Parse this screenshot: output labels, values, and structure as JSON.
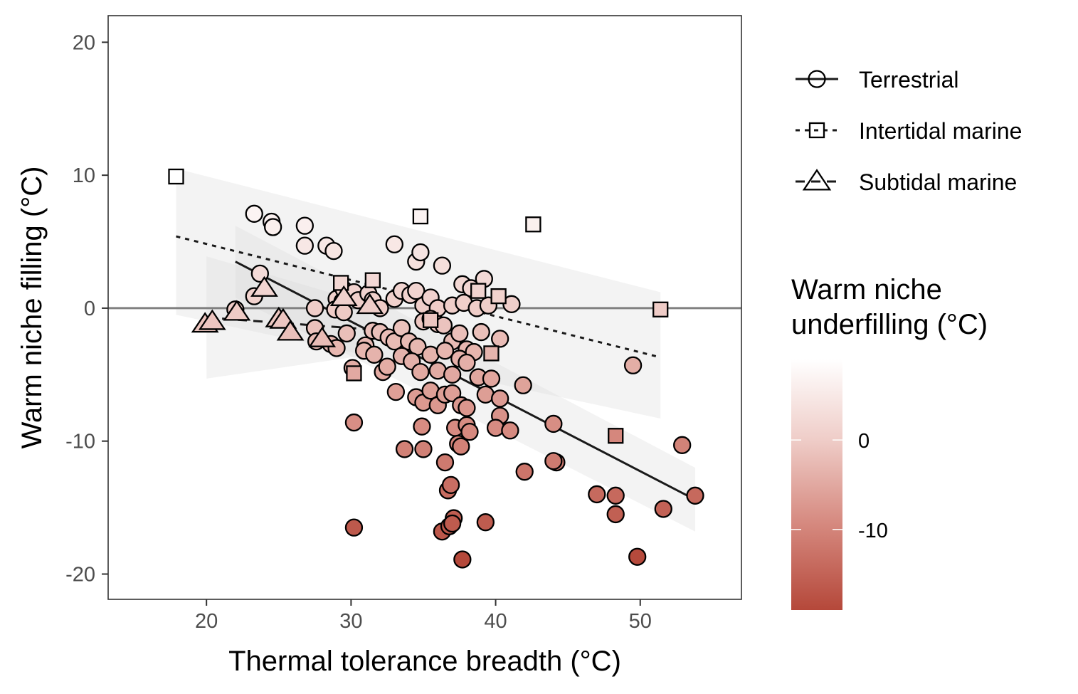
{
  "chart_data": {
    "type": "scatter",
    "xlabel": "Thermal tolerance breadth (°C)",
    "ylabel": "Warm niche filling (°C)",
    "xlim": [
      13.2,
      57
    ],
    "ylim": [
      -21.9,
      22
    ],
    "xticks": [
      20,
      30,
      40,
      50
    ],
    "yticks": [
      -20,
      -10,
      0,
      10,
      20
    ],
    "x_tick_labels": [
      "20",
      "30",
      "40",
      "50"
    ],
    "y_tick_labels": [
      "-20",
      "-10",
      "0",
      "10",
      "20"
    ],
    "grid": false,
    "reference_line_y": 0,
    "legend": {
      "placement": "right",
      "shape_entries": [
        {
          "label": "Terrestrial",
          "shape": "circle",
          "linetype": "solid"
        },
        {
          "label": "Intertidal marine",
          "shape": "square",
          "linetype": "dotted"
        },
        {
          "label": "Subtidal marine",
          "shape": "triangle",
          "linetype": "dashed"
        }
      ],
      "colorbar": {
        "title_line1": "Warm niche",
        "title_line2": "underfilling (°C)",
        "range": [
          -19,
          9
        ],
        "ticks": [
          0,
          -10
        ],
        "tick_labels": [
          "0",
          "-10"
        ],
        "low_color": "#b5483a",
        "high_color": "#ffffff"
      }
    },
    "series": [
      {
        "name": "Terrestrial",
        "shape": "circle",
        "points": [
          [
            23.3,
            7.1
          ],
          [
            24.5,
            6.5
          ],
          [
            24.6,
            6.1
          ],
          [
            26.8,
            6.2
          ],
          [
            26.8,
            4.7
          ],
          [
            28.3,
            4.7
          ],
          [
            28.8,
            4.3
          ],
          [
            33.0,
            4.8
          ],
          [
            34.5,
            3.5
          ],
          [
            34.8,
            4.2
          ],
          [
            36.3,
            3.2
          ],
          [
            37.7,
            1.8
          ],
          [
            38.3,
            1.5
          ],
          [
            39.2,
            2.2
          ],
          [
            22.0,
            -0.1
          ],
          [
            23.3,
            0.9
          ],
          [
            23.7,
            2.6
          ],
          [
            27.5,
            0.0
          ],
          [
            29.0,
            0.7
          ],
          [
            29.4,
            0.5
          ],
          [
            29.5,
            1.4
          ],
          [
            30.2,
            1.2
          ],
          [
            30.5,
            0.6
          ],
          [
            31.2,
            1.1
          ],
          [
            31.5,
            0.6
          ],
          [
            32.0,
            0.0
          ],
          [
            33.0,
            0.7
          ],
          [
            33.5,
            1.3
          ],
          [
            34.1,
            1.0
          ],
          [
            34.5,
            1.3
          ],
          [
            35.0,
            0.2
          ],
          [
            35.5,
            0.8
          ],
          [
            36.0,
            0.0
          ],
          [
            37.0,
            0.2
          ],
          [
            37.8,
            0.4
          ],
          [
            38.7,
            0.0
          ],
          [
            39.5,
            0.2
          ],
          [
            41.1,
            0.3
          ],
          [
            28.9,
            -0.1
          ],
          [
            29.5,
            -0.3
          ],
          [
            27.5,
            -1.5
          ],
          [
            27.6,
            -2.5
          ],
          [
            28.6,
            -2.7
          ],
          [
            29.0,
            -3.0
          ],
          [
            29.7,
            -1.9
          ],
          [
            30.1,
            -4.5
          ],
          [
            31.0,
            -2.8
          ],
          [
            31.5,
            -1.7
          ],
          [
            32.0,
            -1.8
          ],
          [
            32.6,
            -2.2
          ],
          [
            33.0,
            -2.5
          ],
          [
            33.5,
            -1.5
          ],
          [
            34.0,
            -2.5
          ],
          [
            34.6,
            -2.9
          ],
          [
            35.0,
            -1.0
          ],
          [
            35.5,
            -0.8
          ],
          [
            36.0,
            -1.2
          ],
          [
            36.4,
            -1.3
          ],
          [
            37.0,
            -2.5
          ],
          [
            37.5,
            -1.9
          ],
          [
            38.0,
            -3.1
          ],
          [
            38.5,
            -3.3
          ],
          [
            39.0,
            -1.8
          ],
          [
            40.3,
            -2.3
          ],
          [
            30.9,
            -3.2
          ],
          [
            31.6,
            -3.5
          ],
          [
            32.2,
            -4.8
          ],
          [
            32.5,
            -4.4
          ],
          [
            33.5,
            -3.6
          ],
          [
            34.2,
            -4.0
          ],
          [
            34.8,
            -4.8
          ],
          [
            35.5,
            -3.5
          ],
          [
            36.0,
            -4.7
          ],
          [
            36.5,
            -3.2
          ],
          [
            37.0,
            -5.0
          ],
          [
            37.5,
            -3.8
          ],
          [
            38.0,
            -4.1
          ],
          [
            38.8,
            -5.2
          ],
          [
            39.7,
            -5.3
          ],
          [
            33.1,
            -6.3
          ],
          [
            34.5,
            -6.7
          ],
          [
            35.0,
            -7.1
          ],
          [
            35.5,
            -6.2
          ],
          [
            36.0,
            -7.3
          ],
          [
            36.5,
            -6.5
          ],
          [
            37.0,
            -6.4
          ],
          [
            37.6,
            -7.3
          ],
          [
            38.0,
            -7.5
          ],
          [
            39.3,
            -6.5
          ],
          [
            40.3,
            -6.8
          ],
          [
            41.9,
            -5.8
          ],
          [
            40.3,
            -8.1
          ],
          [
            40.0,
            -9.0
          ],
          [
            41.0,
            -9.2
          ],
          [
            44.0,
            -8.7
          ],
          [
            30.2,
            -8.6
          ],
          [
            34.9,
            -8.9
          ],
          [
            37.2,
            -9.0
          ],
          [
            38.0,
            -8.8
          ],
          [
            38.2,
            -9.3
          ],
          [
            33.7,
            -10.6
          ],
          [
            35.0,
            -10.6
          ],
          [
            37.4,
            -10.2
          ],
          [
            37.6,
            -10.4
          ],
          [
            36.5,
            -11.6
          ],
          [
            36.7,
            -13.7
          ],
          [
            36.9,
            -13.3
          ],
          [
            42.0,
            -12.3
          ],
          [
            44.2,
            -11.6
          ],
          [
            44.0,
            -11.5
          ],
          [
            47.0,
            -14.0
          ],
          [
            48.3,
            -14.1
          ],
          [
            48.3,
            -15.5
          ],
          [
            51.6,
            -15.1
          ],
          [
            52.9,
            -10.3
          ],
          [
            53.8,
            -14.1
          ],
          [
            49.5,
            -4.3
          ],
          [
            36.3,
            -16.8
          ],
          [
            36.8,
            -16.4
          ],
          [
            37.1,
            -15.8
          ],
          [
            37.0,
            -16.2
          ],
          [
            39.3,
            -16.1
          ],
          [
            30.2,
            -16.5
          ],
          [
            37.7,
            -18.9
          ],
          [
            49.8,
            -18.7
          ]
        ]
      },
      {
        "name": "Intertidal marine",
        "shape": "square",
        "points": [
          [
            17.9,
            9.9
          ],
          [
            34.8,
            6.9
          ],
          [
            42.6,
            6.3
          ],
          [
            29.3,
            1.9
          ],
          [
            31.5,
            2.1
          ],
          [
            38.8,
            1.3
          ],
          [
            40.2,
            0.9
          ],
          [
            51.4,
            -0.1
          ],
          [
            30.2,
            -4.9
          ],
          [
            39.7,
            -3.4
          ],
          [
            48.3,
            -9.6
          ],
          [
            35.5,
            -0.9
          ]
        ]
      },
      {
        "name": "Subtidal marine",
        "shape": "triangle",
        "points": [
          [
            24.0,
            1.5
          ],
          [
            29.5,
            0.8
          ],
          [
            31.3,
            0.2
          ],
          [
            19.9,
            -1.2
          ],
          [
            20.4,
            -1.0
          ],
          [
            22.1,
            -0.3
          ],
          [
            25.0,
            -0.8
          ],
          [
            25.3,
            -0.9
          ],
          [
            25.8,
            -1.8
          ],
          [
            28.0,
            -2.3
          ]
        ]
      }
    ],
    "fits": [
      {
        "name": "Terrestrial",
        "linetype": "solid",
        "x": [
          22,
          53.8
        ],
        "y": [
          3.5,
          -14.4
        ],
        "band_lower": [
          0.8,
          -16.8
        ],
        "band_upper": [
          6.2,
          -12.0
        ]
      },
      {
        "name": "Intertidal marine",
        "linetype": "dotted",
        "x": [
          17.9,
          51.4
        ],
        "y": [
          5.4,
          -3.7
        ],
        "band_lower": [
          -0.5,
          -8.3
        ],
        "band_upper": [
          10.5,
          1.2
        ]
      },
      {
        "name": "Subtidal marine",
        "linetype": "dashed",
        "x": [
          20,
          31.3
        ],
        "y": [
          -0.7,
          -1.6
        ],
        "band_lower": [
          -5.3,
          -3.5
        ],
        "band_upper": [
          3.9,
          0.3
        ]
      }
    ]
  }
}
